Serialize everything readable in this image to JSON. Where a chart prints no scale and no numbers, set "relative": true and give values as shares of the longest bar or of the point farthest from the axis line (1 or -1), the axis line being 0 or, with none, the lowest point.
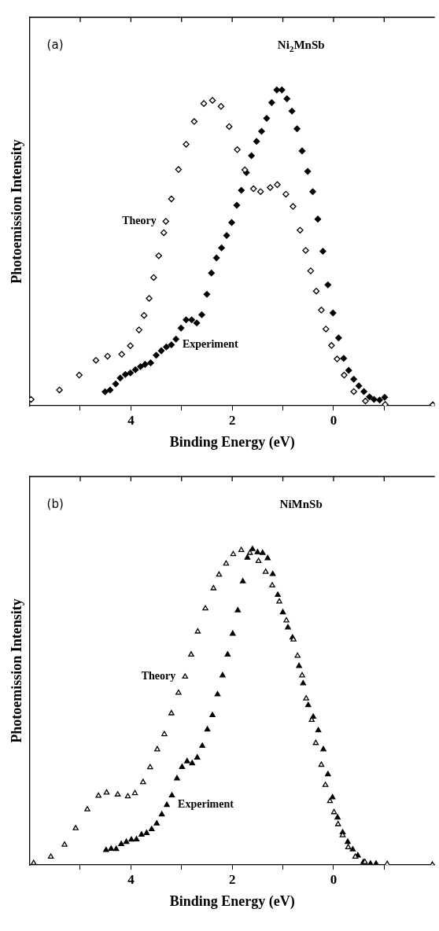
{
  "chart_data": [
    {
      "type": "scatter",
      "title": "Ni$_{2}$MnSb",
      "xlabel": "Binding Energy (eV)",
      "ylabel": "Photoemission Intensity",
      "relative": true,
      "marker": "diamond",
      "xlim": [
        6,
        -2
      ],
      "xticks": [
        {
          "value": 5,
          "label": null
        },
        4,
        {
          "value": 3,
          "label": null
        },
        2,
        {
          "value": 1,
          "label": null
        },
        0,
        {
          "value": -1,
          "label": null
        }
      ],
      "annotations": [
        "(a)"
      ],
      "series": [
        {
          "name": "Theory",
          "color": "#000000",
          "x": [
            5.97,
            5.41,
            5.02,
            4.69,
            4.46,
            4.18,
            4.01,
            3.84,
            3.74,
            3.64,
            3.55,
            3.45,
            3.35,
            3.31,
            3.2,
            3.06,
            2.91,
            2.75,
            2.56,
            2.39,
            2.22,
            2.06,
            1.9,
            1.75,
            1.58,
            1.44,
            1.25,
            1.11,
            0.94,
            0.8,
            0.66,
            0.55,
            0.45,
            0.34,
            0.24,
            0.15,
            0.04,
            -0.07,
            -0.21,
            -0.4,
            -0.63,
            -1.02,
            -1.96
          ],
          "values": [
            0.02,
            0.05,
            0.097,
            0.144,
            0.157,
            0.163,
            0.19,
            0.24,
            0.286,
            0.34,
            0.406,
            0.475,
            0.548,
            0.584,
            0.655,
            0.748,
            0.828,
            0.9,
            0.957,
            0.967,
            0.948,
            0.884,
            0.811,
            0.747,
            0.687,
            0.678,
            0.691,
            0.7,
            0.67,
            0.631,
            0.556,
            0.492,
            0.427,
            0.363,
            0.303,
            0.243,
            0.191,
            0.148,
            0.097,
            0.045,
            0.015,
            0.004,
            0.003
          ]
        },
        {
          "name": "Experiment",
          "color": "#000000",
          "x": [
            4.51,
            4.41,
            4.3,
            4.21,
            4.11,
            4.01,
            3.91,
            3.81,
            3.72,
            3.61,
            3.5,
            3.4,
            3.3,
            3.2,
            3.11,
            3.01,
            2.91,
            2.8,
            2.7,
            2.6,
            2.5,
            2.41,
            2.31,
            2.21,
            2.11,
            2.01,
            1.91,
            1.82,
            1.72,
            1.62,
            1.52,
            1.42,
            1.32,
            1.22,
            1.12,
            1.02,
            0.92,
            0.82,
            0.72,
            0.62,
            0.51,
            0.41,
            0.31,
            0.21,
            0.11,
            0.01,
            -0.1,
            -0.2,
            -0.3,
            -0.4,
            -0.5,
            -0.6,
            -0.71,
            -0.8,
            -0.91,
            -1.01
          ],
          "values": [
            0.044,
            0.05,
            0.069,
            0.088,
            0.099,
            0.104,
            0.114,
            0.124,
            0.131,
            0.136,
            0.16,
            0.174,
            0.186,
            0.193,
            0.211,
            0.246,
            0.272,
            0.272,
            0.262,
            0.288,
            0.353,
            0.42,
            0.468,
            0.5,
            0.539,
            0.58,
            0.635,
            0.682,
            0.738,
            0.792,
            0.837,
            0.869,
            0.91,
            0.96,
            1,
            1,
            0.972,
            0.933,
            0.877,
            0.807,
            0.742,
            0.678,
            0.591,
            0.489,
            0.383,
            0.294,
            0.215,
            0.15,
            0.112,
            0.084,
            0.063,
            0.045,
            0.028,
            0.02,
            0.018,
            0.027
          ]
        }
      ]
    },
    {
      "type": "scatter",
      "title": "NiMnSb",
      "xlabel": "Binding Energy (eV)",
      "ylabel": "Photoemission Intensity",
      "relative": true,
      "marker": "triangle",
      "xlim": [
        6,
        -2
      ],
      "xticks": [
        {
          "value": 5,
          "label": null
        },
        4,
        {
          "value": 3,
          "label": null
        },
        2,
        {
          "value": 1,
          "label": null
        },
        0,
        {
          "value": -1,
          "label": null
        }
      ],
      "annotations": [
        "(b)"
      ],
      "series": [
        {
          "name": "Theory",
          "color": "#000000",
          "x": [
            5.92,
            5.58,
            5.31,
            5.09,
            4.86,
            4.64,
            4.48,
            4.26,
            4.06,
            3.92,
            3.76,
            3.62,
            3.48,
            3.34,
            3.2,
            3.06,
            2.93,
            2.81,
            2.68,
            2.53,
            2.37,
            2.26,
            2.12,
            1.98,
            1.82,
            1.65,
            1.48,
            1.34,
            1.21,
            1.07,
            0.93,
            0.79,
            0.71,
            0.62,
            0.54,
            0.43,
            0.35,
            0.24,
            0.16,
            0.07,
            -0.01,
            -0.09,
            -0.18,
            -0.29,
            -0.43,
            -0.62,
            -1.06,
            -1.95
          ],
          "values": [
            0.006,
            0.026,
            0.064,
            0.116,
            0.176,
            0.219,
            0.229,
            0.223,
            0.217,
            0.227,
            0.262,
            0.309,
            0.366,
            0.414,
            0.48,
            0.545,
            0.596,
            0.666,
            0.739,
            0.812,
            0.876,
            0.919,
            0.954,
            0.984,
            0.997,
            0.988,
            0.962,
            0.928,
            0.885,
            0.834,
            0.774,
            0.714,
            0.662,
            0.6,
            0.527,
            0.459,
            0.386,
            0.317,
            0.253,
            0.202,
            0.167,
            0.129,
            0.094,
            0.056,
            0.026,
            0.009,
            0.003,
            0.001
          ]
        },
        {
          "name": "Experiment",
          "color": "#000000",
          "x": [
            4.49,
            4.39,
            4.29,
            4.19,
            4.09,
            3.99,
            3.89,
            3.79,
            3.69,
            3.59,
            3.49,
            3.39,
            3.29,
            3.19,
            3.09,
            2.99,
            2.89,
            2.79,
            2.69,
            2.59,
            2.49,
            2.39,
            2.29,
            2.19,
            2.09,
            1.99,
            1.89,
            1.79,
            1.7,
            1.6,
            1.5,
            1.4,
            1.3,
            1.2,
            1.1,
            1,
            0.9,
            0.81,
            0.68,
            0.6,
            0.5,
            0.4,
            0.3,
            0.2,
            0.11,
            0.02,
            -0.08,
            -0.18,
            -0.28,
            -0.38,
            -0.48,
            -0.59,
            -0.73,
            -0.84
          ],
          "values": [
            0.047,
            0.051,
            0.05,
            0.066,
            0.073,
            0.08,
            0.081,
            0.096,
            0.101,
            0.113,
            0.131,
            0.16,
            0.19,
            0.22,
            0.274,
            0.31,
            0.328,
            0.322,
            0.34,
            0.377,
            0.429,
            0.474,
            0.54,
            0.6,
            0.666,
            0.732,
            0.806,
            0.898,
            0.973,
            1,
            0.99,
            0.988,
            0.971,
            0.921,
            0.855,
            0.8,
            0.752,
            0.72,
            0.63,
            0.575,
            0.506,
            0.469,
            0.426,
            0.366,
            0.287,
            0.214,
            0.15,
            0.103,
            0.073,
            0.049,
            0.03,
            0.009,
            0.004,
            0.004
          ]
        }
      ]
    }
  ]
}
